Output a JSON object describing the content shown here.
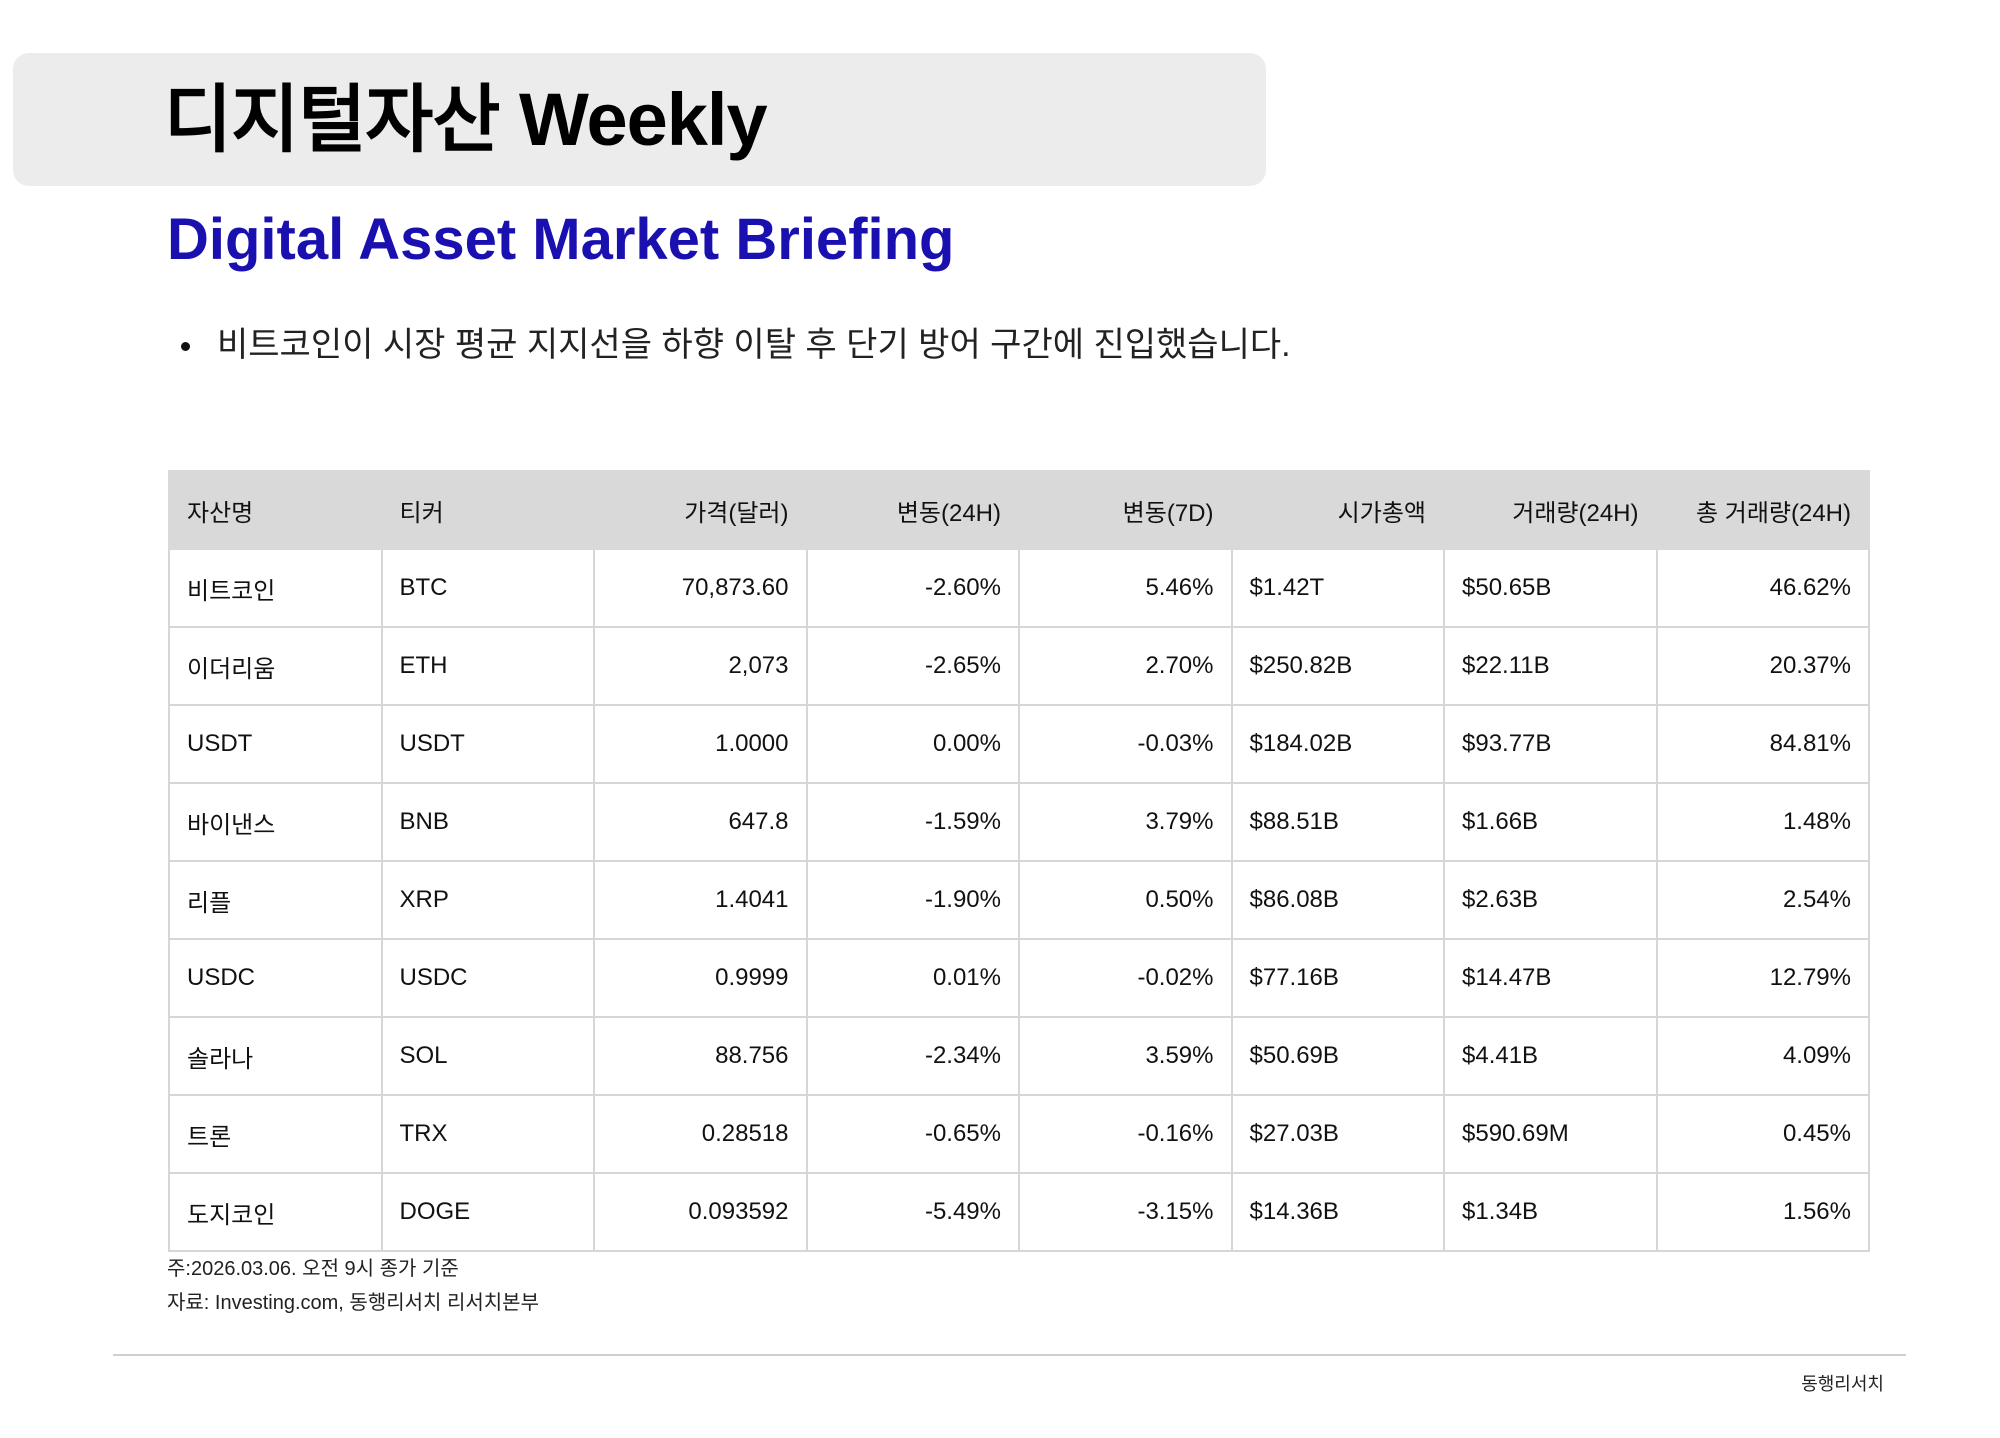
{
  "header": {
    "title": "디지털자산 Weekly",
    "subtitle": "Digital Asset Market Briefing"
  },
  "bullets": [
    "비트코인이 시장 평균 지지선을 하향 이탈 후 단기 방어 구간에 진입했습니다."
  ],
  "table": {
    "columns": [
      "자산명",
      "티커",
      "가격(달러)",
      "변동(24H)",
      "변동(7D)",
      "시가총액",
      "거래량(24H)",
      "총 거래량(24H)"
    ],
    "rows": [
      [
        "비트코인",
        "BTC",
        "70,873.60",
        "-2.60%",
        "5.46%",
        "$1.42T",
        "$50.65B",
        "46.62%"
      ],
      [
        "이더리움",
        "ETH",
        "2,073",
        "-2.65%",
        "2.70%",
        "$250.82B",
        "$22.11B",
        "20.37%"
      ],
      [
        "USDT",
        "USDT",
        "1.0000",
        "0.00%",
        "-0.03%",
        "$184.02B",
        "$93.77B",
        "84.81%"
      ],
      [
        "바이낸스",
        "BNB",
        "647.8",
        "-1.59%",
        "3.79%",
        "$88.51B",
        "$1.66B",
        "1.48%"
      ],
      [
        "리플",
        "XRP",
        "1.4041",
        "-1.90%",
        "0.50%",
        "$86.08B",
        "$2.63B",
        "2.54%"
      ],
      [
        "USDC",
        "USDC",
        "0.9999",
        "0.01%",
        "-0.02%",
        "$77.16B",
        "$14.47B",
        "12.79%"
      ],
      [
        "솔라나",
        "SOL",
        "88.756",
        "-2.34%",
        "3.59%",
        "$50.69B",
        "$4.41B",
        "4.09%"
      ],
      [
        "트론",
        "TRX",
        "0.28518",
        "-0.65%",
        "-0.16%",
        "$27.03B",
        "$590.69M",
        "0.45%"
      ],
      [
        "도지코인",
        "DOGE",
        "0.093592",
        "-5.49%",
        "-3.15%",
        "$14.36B",
        "$1.34B",
        "1.56%"
      ]
    ]
  },
  "notes": [
    "주:2026.03.06. 오전 9시 종가 기준",
    "자료: Investing.com, 동행리서치 리서치본부"
  ],
  "footer": "동행리서치"
}
